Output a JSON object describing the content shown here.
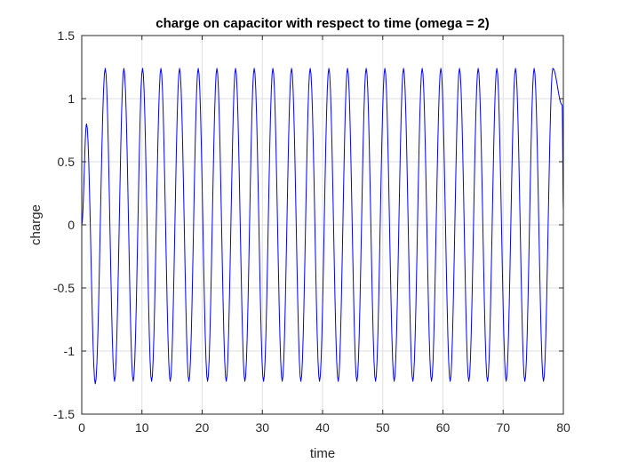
{
  "chart_data": {
    "type": "line",
    "title": "charge on capacitor with respect to time (omega = 2)",
    "xlabel": "time",
    "ylabel": "charge",
    "xlim": [
      0,
      80
    ],
    "ylim": [
      -1.5,
      1.5
    ],
    "xticks": [
      0,
      10,
      20,
      30,
      40,
      50,
      60,
      70,
      80
    ],
    "yticks": [
      -1.5,
      -1,
      -0.5,
      0,
      0.5,
      1,
      1.5
    ],
    "grid": true,
    "series": [
      {
        "color": "#0000ff",
        "x": [
          0,
          0.8,
          2.25,
          3.9,
          5.45,
          7.0,
          8.55,
          10.1,
          11.6,
          13.15,
          14.7,
          16.25,
          17.8,
          19.35,
          20.9,
          22.45,
          24.0,
          25.55,
          27.1,
          28.65,
          30.2,
          31.75,
          33.3,
          34.85,
          36.4,
          37.95,
          39.5,
          41.05,
          42.6,
          44.15,
          45.7,
          47.25,
          48.8,
          50.35,
          51.9,
          53.45,
          55.0,
          56.55,
          58.1,
          59.65,
          61.2,
          62.75,
          64.3,
          65.85,
          67.4,
          68.95,
          70.5,
          72.05,
          73.6,
          75.15,
          76.7,
          78.25,
          79.8,
          80
        ],
        "y": [
          0,
          0.8,
          -1.26,
          1.24,
          -1.24,
          1.24,
          -1.24,
          1.24,
          -1.24,
          1.24,
          -1.24,
          1.24,
          -1.24,
          1.24,
          -1.24,
          1.24,
          -1.24,
          1.24,
          -1.24,
          1.24,
          -1.24,
          1.24,
          -1.24,
          1.24,
          -1.24,
          1.24,
          -1.24,
          1.24,
          -1.24,
          1.24,
          -1.24,
          1.24,
          -1.24,
          1.24,
          -1.24,
          1.24,
          -1.24,
          1.24,
          -1.24,
          1.24,
          -1.24,
          1.24,
          -1.24,
          1.24,
          -1.24,
          1.24,
          -1.24,
          1.24,
          -1.24,
          1.24,
          -1.24,
          1.24,
          0.95,
          0.13
        ]
      }
    ]
  }
}
